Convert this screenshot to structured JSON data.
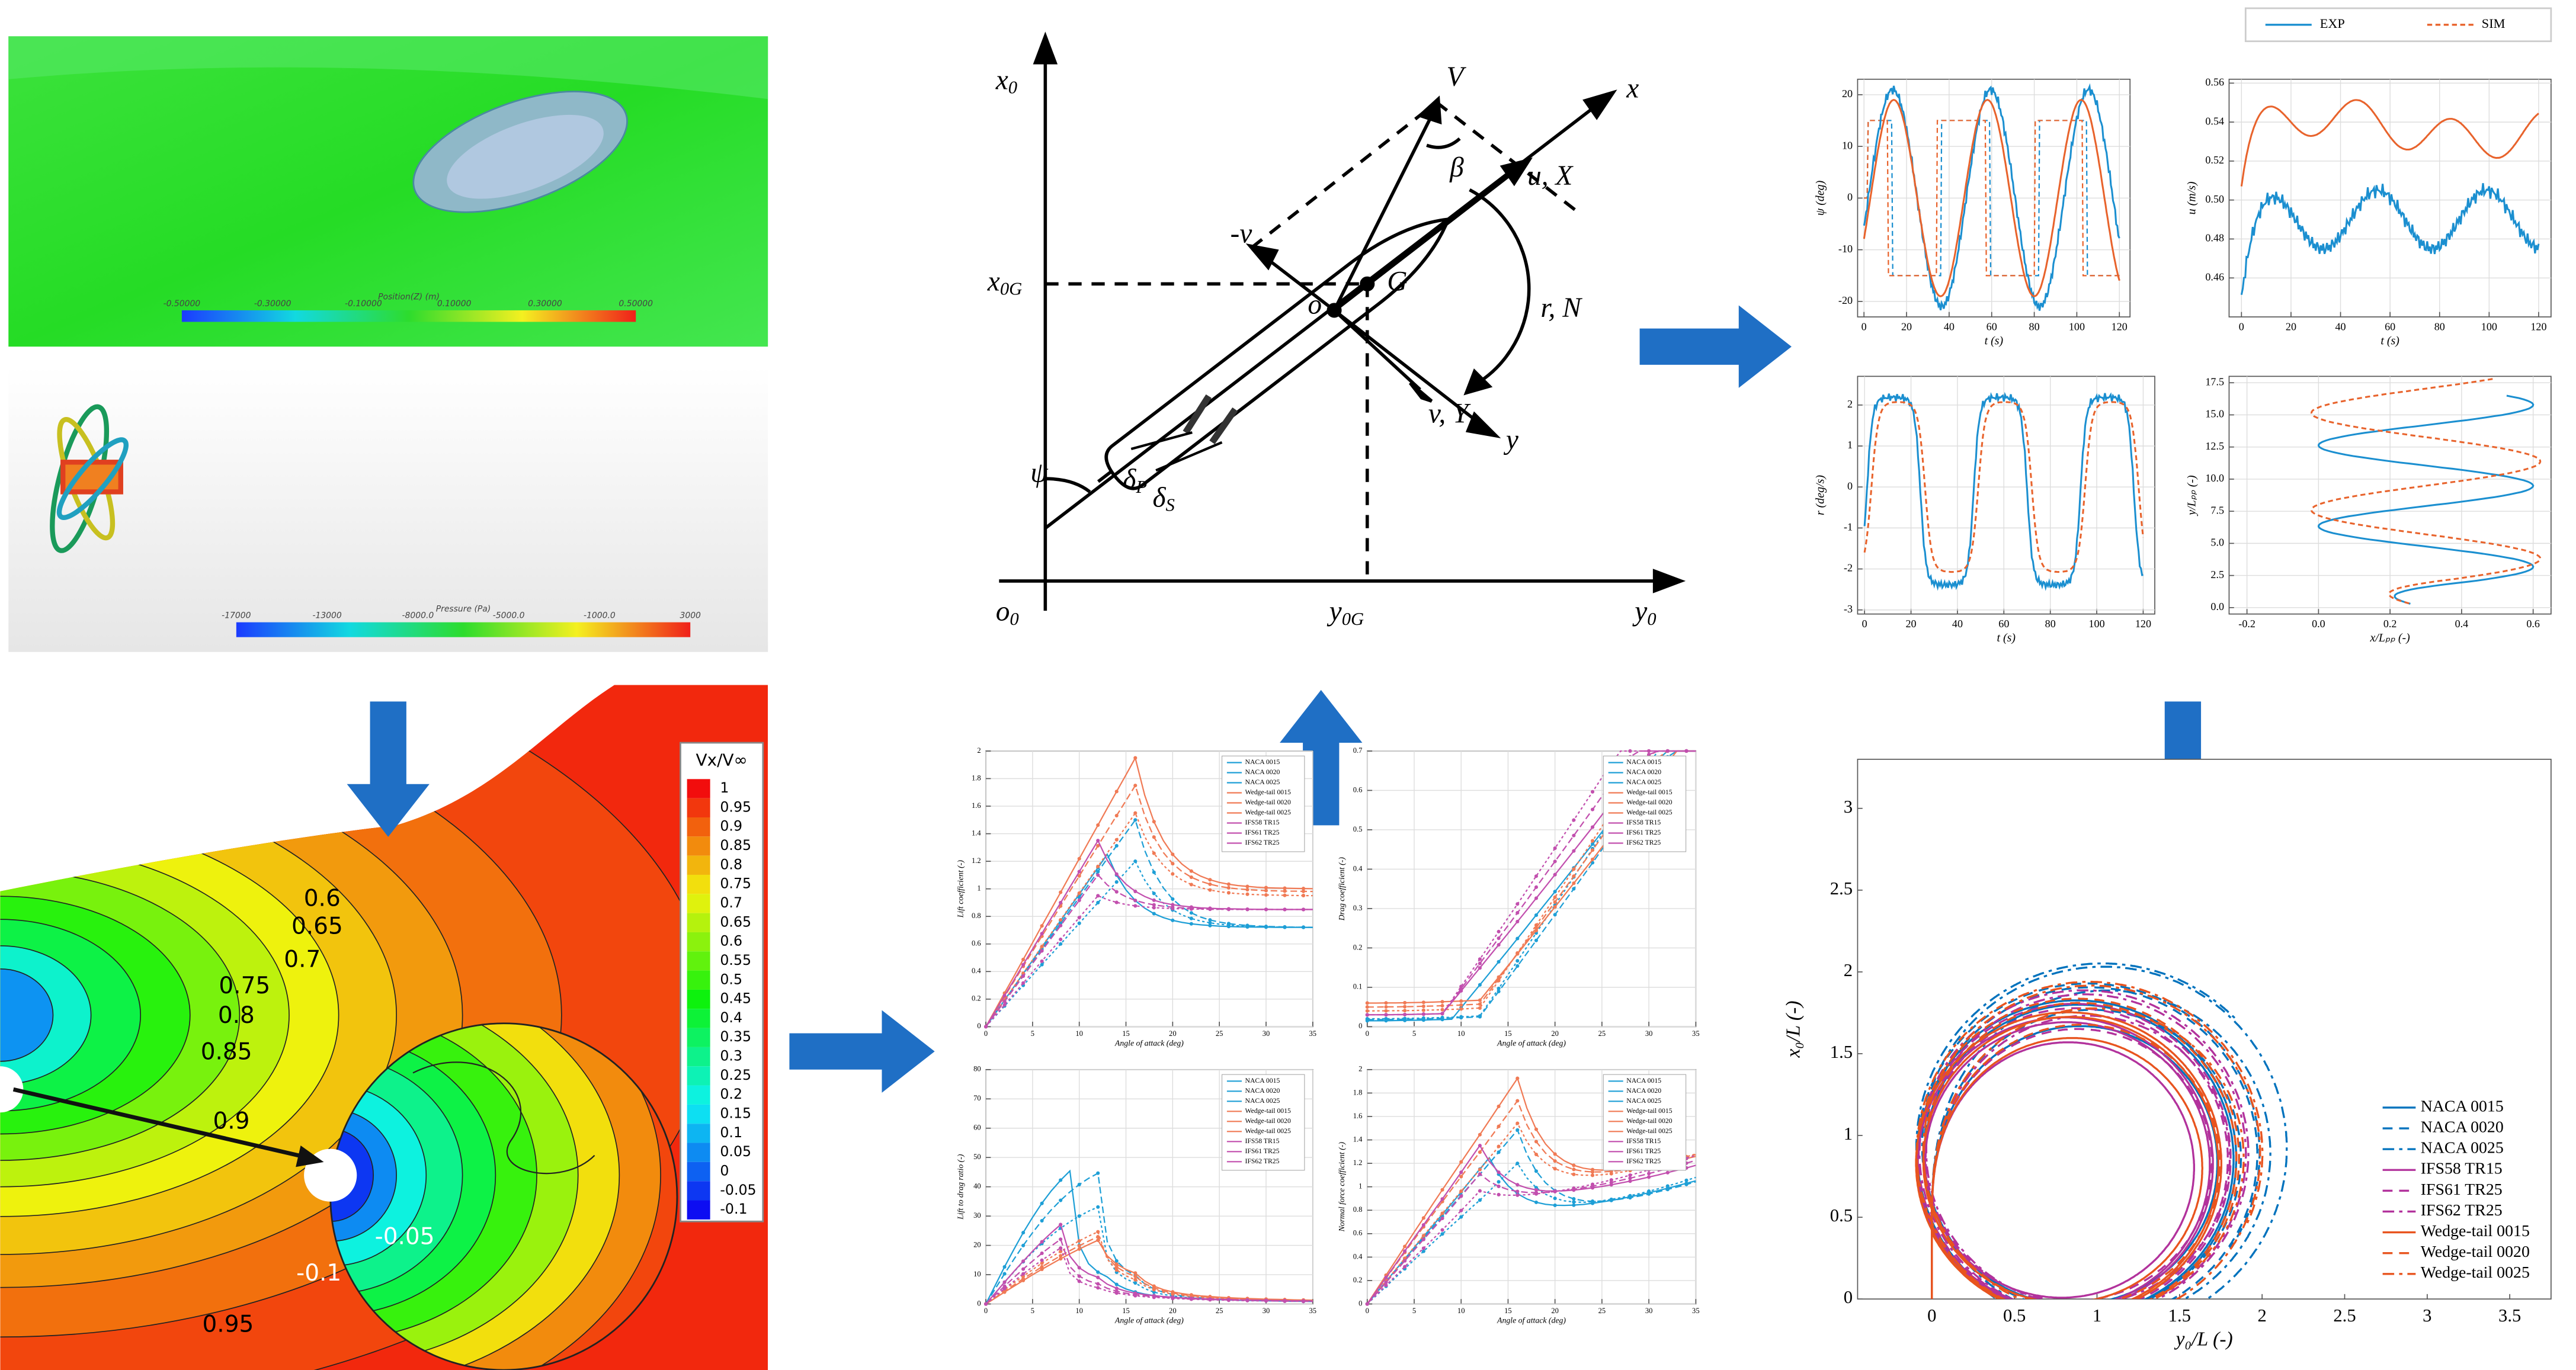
{
  "cfd_surface": {
    "colorbar_title": "Position(Z) (m)",
    "colorbar_ticks": [
      "-0.50000",
      "-0.30000",
      "-0.10000",
      "0.10000",
      "0.30000",
      "0.50000"
    ]
  },
  "cfd_propeller": {
    "colorbar_title": "Pressure (Pa)",
    "colorbar_ticks": [
      "-17000",
      "-13000",
      "-8000.0",
      "-5000.0",
      "-1000.0",
      "3000"
    ]
  },
  "contour": {
    "legend_title": "Vx/V∞",
    "legend_levels": [
      1,
      0.95,
      0.9,
      0.85,
      0.8,
      0.75,
      0.7,
      0.65,
      0.6,
      0.55,
      0.5,
      0.45,
      0.4,
      0.35,
      0.3,
      0.25,
      0.2,
      0.15,
      0.1,
      0.05,
      0,
      -0.05,
      -0.1
    ],
    "contour_labels": [
      "0.6",
      "0.65",
      "0.7",
      "0.75",
      "0.8",
      "0.85",
      "0.9",
      "0.95",
      "-0.05",
      "-0.1"
    ]
  },
  "diagram": {
    "labels": [
      {
        "main": "x",
        "sub": "0"
      },
      {
        "main": "V",
        "sub": ""
      },
      {
        "main": "x",
        "sub": ""
      },
      {
        "main": "u, X",
        "sub": ""
      },
      {
        "main": "β",
        "sub": ""
      },
      {
        "main": "-v",
        "sub": ""
      },
      {
        "main": "x",
        "sub": "0G"
      },
      {
        "main": "o",
        "sub": ""
      },
      {
        "main": "G",
        "sub": ""
      },
      {
        "main": "r, N",
        "sub": ""
      },
      {
        "main": "v, Y",
        "sub": ""
      },
      {
        "main": "y",
        "sub": ""
      },
      {
        "main": "ψ",
        "sub": ""
      },
      {
        "main": "δ",
        "sub": "P"
      },
      {
        "main": "δ",
        "sub": "S"
      },
      {
        "main": "o",
        "sub": "0"
      },
      {
        "main": "y",
        "sub": "0G"
      },
      {
        "main": "y",
        "sub": "0"
      }
    ]
  },
  "response_plots": {
    "legend": [
      "EXP",
      "SIM"
    ],
    "panels": [
      {
        "ylabel": "ψ (deg)",
        "xlabel": "t (s)",
        "xlim": [
          -3,
          125
        ],
        "ylim": [
          -23,
          23
        ],
        "xticks": [
          0,
          20,
          40,
          60,
          80,
          100,
          120
        ],
        "yticks": [
          -20,
          -10,
          0,
          10,
          20
        ]
      },
      {
        "ylabel": "u (m/s)",
        "xlabel": "t (s)",
        "xlim": [
          -5,
          125
        ],
        "ylim": [
          0.44,
          0.562
        ],
        "xticks": [
          0,
          20,
          40,
          60,
          80,
          100,
          120
        ],
        "yticks": [
          0.46,
          0.48,
          {
            "value": 0.5,
            "label": "0.50"
          },
          0.52,
          0.54,
          0.56
        ]
      },
      {
        "ylabel": "r (deg/s)",
        "xlabel": "t (s)",
        "xlim": [
          -3,
          125
        ],
        "ylim": [
          -3.1,
          2.7
        ],
        "xticks": [
          0,
          20,
          40,
          60,
          80,
          100,
          120
        ],
        "yticks": [
          -3,
          -2,
          -1,
          0,
          1,
          2
        ]
      },
      {
        "ylabel": "y/Lₚₚ (-)",
        "xlabel": "x/Lₚₚ (-)",
        "xlim": [
          -0.25,
          0.65
        ],
        "ylim": [
          -0.5,
          18
        ],
        "xticks": [
          -0.2,
          {
            "value": 0,
            "label": "0.0"
          },
          0.2,
          0.4,
          0.6
        ],
        "yticks": [
          {
            "value": 0,
            "label": "0.0"
          },
          2.5,
          {
            "value": 5,
            "label": "5.0"
          },
          7.5,
          {
            "value": 10,
            "label": "10.0"
          },
          12.5,
          {
            "value": 15,
            "label": "15.0"
          },
          17.5
        ]
      }
    ]
  },
  "foil_plots": {
    "xlabel": "Angle of attack (deg)",
    "xlim": [
      0,
      35
    ],
    "xticks": [
      0,
      5,
      10,
      15,
      20,
      25,
      30,
      35
    ],
    "series": [
      {
        "name": "NACA 0015",
        "color": "#1e9fd6"
      },
      {
        "name": "NACA 0020",
        "color": "#1e9fd6"
      },
      {
        "name": "NACA 0025",
        "color": "#1e9fd6"
      },
      {
        "name": "Wedge-tail 0015",
        "color": "#f07a55"
      },
      {
        "name": "Wedge-tail 0020",
        "color": "#f07a55"
      },
      {
        "name": "Wedge-tail 0025",
        "color": "#f07a55"
      },
      {
        "name": "IFS58 TR15",
        "color": "#c24fae"
      },
      {
        "name": "IFS61 TR25",
        "color": "#c24fae"
      },
      {
        "name": "IFS62 TR25",
        "color": "#c24fae"
      }
    ],
    "panels": [
      {
        "ylabel": "Lift coefficient (-)",
        "ylim": [
          0,
          2
        ],
        "yticks": [
          0,
          0.2,
          0.4,
          0.6,
          0.8,
          1,
          1.2,
          1.4,
          1.6,
          1.8,
          2
        ]
      },
      {
        "ylabel": "Drag coefficient (-)",
        "ylim": [
          0,
          0.7
        ],
        "yticks": [
          0,
          0.1,
          0.2,
          0.3,
          0.4,
          0.5,
          0.6,
          0.7
        ]
      },
      {
        "ylabel": "Lift to drag ratio (-)",
        "ylim": [
          0,
          80
        ],
        "yticks": [
          0,
          10,
          20,
          30,
          40,
          50,
          60,
          70,
          80
        ]
      },
      {
        "ylabel": "Normal force coefficient (-)",
        "ylim": [
          0,
          2
        ],
        "yticks": [
          0,
          0.2,
          0.4,
          0.6,
          0.8,
          1,
          1.2,
          1.4,
          1.6,
          1.8,
          2
        ]
      }
    ]
  },
  "trajectory": {
    "xlabel": "y₀/L (-)",
    "ylabel": "x₀/L (-)",
    "xlim": [
      -0.45,
      3.75
    ],
    "ylim": [
      0,
      3.3
    ],
    "xticks": [
      0,
      0.5,
      1,
      1.5,
      2,
      2.5,
      3,
      3.5
    ],
    "yticks": [
      0,
      0.5,
      1,
      1.5,
      2,
      2.5,
      3
    ],
    "series": [
      {
        "name": "NACA 0015",
        "color": "#0072bd",
        "dash": "solid"
      },
      {
        "name": "NACA 0020",
        "color": "#0072bd",
        "dash": "dashed"
      },
      {
        "name": "NACA 0025",
        "color": "#0072bd",
        "dash": "dashdot"
      },
      {
        "name": "IFS58 TR15",
        "color": "#b2329c",
        "dash": "solid"
      },
      {
        "name": "IFS61 TR25",
        "color": "#b2329c",
        "dash": "dashed"
      },
      {
        "name": "IFS62 TR25",
        "color": "#b2329c",
        "dash": "dashdot"
      },
      {
        "name": "Wedge-tail 0015",
        "color": "#e8541e",
        "dash": "solid"
      },
      {
        "name": "Wedge-tail 0020",
        "color": "#e8541e",
        "dash": "dashed"
      },
      {
        "name": "Wedge-tail 0025",
        "color": "#e8541e",
        "dash": "dashdot"
      }
    ]
  }
}
